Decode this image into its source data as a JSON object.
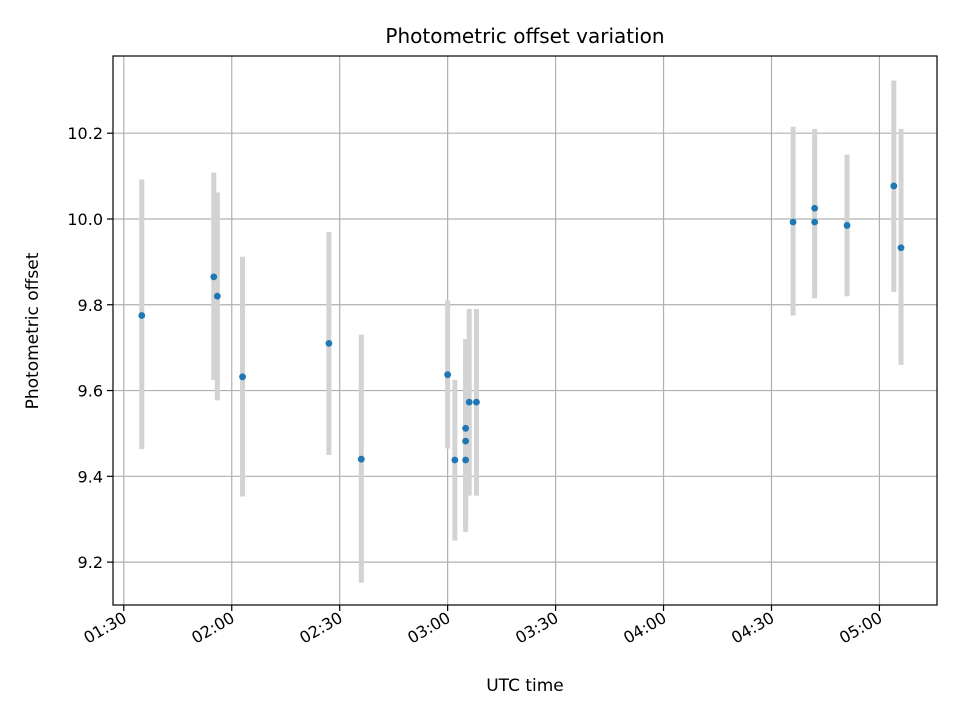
{
  "chart_data": {
    "type": "scatter",
    "title": "Photometric offset variation",
    "xlabel": "UTC time",
    "ylabel": "Photometric offset",
    "x_axis_type": "time",
    "xlim": [
      "01:27",
      "05:16"
    ],
    "ylim": [
      9.1,
      10.38
    ],
    "grid": true,
    "x_ticks": [
      "01:30",
      "02:00",
      "02:30",
      "03:00",
      "03:30",
      "04:00",
      "04:30",
      "05:00"
    ],
    "y_ticks": [
      "9.2",
      "9.4",
      "9.6",
      "9.8",
      "10.0",
      "10.2"
    ],
    "marker_color": "#1f77b4",
    "errorbar_color": "#d3d3d3",
    "points": [
      {
        "x": "01:35",
        "y": 9.775,
        "ylow": 9.463,
        "yhigh": 10.092
      },
      {
        "x": "01:55",
        "y": 9.865,
        "ylow": 9.625,
        "yhigh": 10.108
      },
      {
        "x": "01:56",
        "y": 9.82,
        "ylow": 9.577,
        "yhigh": 10.062
      },
      {
        "x": "02:03",
        "y": 9.632,
        "ylow": 9.353,
        "yhigh": 9.912
      },
      {
        "x": "02:27",
        "y": 9.71,
        "ylow": 9.45,
        "yhigh": 9.97
      },
      {
        "x": "02:36",
        "y": 9.44,
        "ylow": 9.152,
        "yhigh": 9.73
      },
      {
        "x": "03:00",
        "y": 9.637,
        "ylow": 9.465,
        "yhigh": 9.81
      },
      {
        "x": "03:02",
        "y": 9.438,
        "ylow": 9.25,
        "yhigh": 9.625
      },
      {
        "x": "03:05",
        "y": 9.438,
        "ylow": 9.27,
        "yhigh": 9.6
      },
      {
        "x": "03:05",
        "y": 9.482,
        "ylow": 9.285,
        "yhigh": 9.68
      },
      {
        "x": "03:05",
        "y": 9.512,
        "ylow": 9.305,
        "yhigh": 9.72
      },
      {
        "x": "03:06",
        "y": 9.573,
        "ylow": 9.355,
        "yhigh": 9.79
      },
      {
        "x": "03:08",
        "y": 9.573,
        "ylow": 9.355,
        "yhigh": 9.79
      },
      {
        "x": "04:36",
        "y": 9.993,
        "ylow": 9.775,
        "yhigh": 10.215
      },
      {
        "x": "04:42",
        "y": 9.993,
        "ylow": 9.815,
        "yhigh": 10.17
      },
      {
        "x": "04:42",
        "y": 10.025,
        "ylow": 9.84,
        "yhigh": 10.21
      },
      {
        "x": "04:51",
        "y": 9.985,
        "ylow": 9.82,
        "yhigh": 10.15
      },
      {
        "x": "05:04",
        "y": 10.077,
        "ylow": 9.83,
        "yhigh": 10.323
      },
      {
        "x": "05:06",
        "y": 9.933,
        "ylow": 9.66,
        "yhigh": 10.21
      }
    ]
  }
}
